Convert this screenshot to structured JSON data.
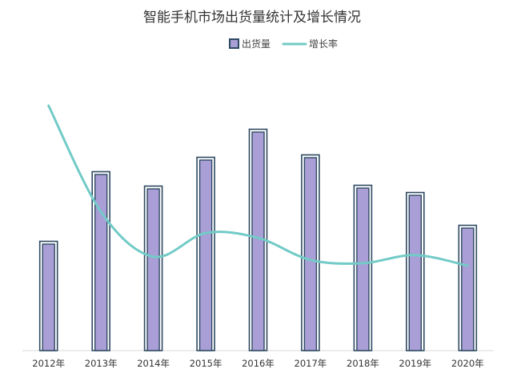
{
  "chart_data": {
    "type": "bar",
    "title": "智能手机市场出货量统计及增长情况",
    "categories": [
      "2012年",
      "2013年",
      "2014年",
      "2015年",
      "2016年",
      "2017年",
      "2018年",
      "2019年",
      "2020年"
    ],
    "series": [
      {
        "name": "出货量",
        "type": "bar",
        "color": "#a99fd6",
        "border_color": "#2e4a62",
        "values": [
          135,
          222,
          204,
          240,
          275,
          243,
          205,
          196,
          155
        ]
      },
      {
        "name": "增长率",
        "type": "line",
        "color": "#72cbc7",
        "smooth": true,
        "values": [
          300,
          170,
          115,
          144,
          138,
          111,
          107,
          117,
          104
        ]
      }
    ],
    "legend": "top-center",
    "grid": false,
    "xlabel": "",
    "ylabel": ""
  }
}
